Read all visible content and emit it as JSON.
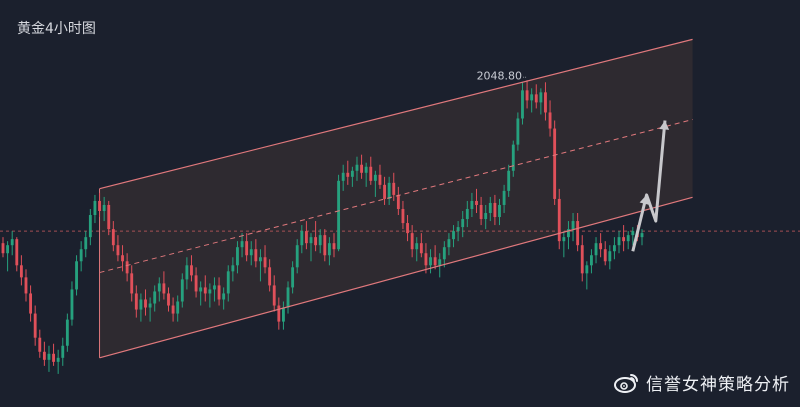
{
  "chart_title": "黄金4小时图",
  "watermark": {
    "text": "信誉女神策略分析",
    "icon": "weibo-icon"
  },
  "colors": {
    "background": "#1b202d",
    "up": "#26a17e",
    "down": "#e0505a",
    "channel": "#e0787c",
    "channel_fill": "#2e2a30",
    "price_line": "#c45a5e",
    "projection": "#c8c8cc"
  },
  "chart_data": {
    "type": "candlestick",
    "title": "黄金4小时图",
    "peak_label": "2048.80",
    "ylim": [
      1895,
      2075
    ],
    "x_count": 140,
    "candles": [
      [
        1969,
        1972,
        1962,
        1964
      ],
      [
        1964,
        1970,
        1955,
        1968
      ],
      [
        1968,
        1975,
        1963,
        1971
      ],
      [
        1971,
        1972,
        1955,
        1958
      ],
      [
        1958,
        1963,
        1948,
        1952
      ],
      [
        1952,
        1956,
        1940,
        1944
      ],
      [
        1944,
        1948,
        1930,
        1934
      ],
      [
        1934,
        1938,
        1918,
        1922
      ],
      [
        1922,
        1926,
        1912,
        1915
      ],
      [
        1915,
        1920,
        1908,
        1911
      ],
      [
        1911,
        1918,
        1905,
        1914
      ],
      [
        1914,
        1919,
        1908,
        1910
      ],
      [
        1910,
        1916,
        1904,
        1912
      ],
      [
        1912,
        1922,
        1908,
        1918
      ],
      [
        1918,
        1934,
        1915,
        1931
      ],
      [
        1931,
        1950,
        1928,
        1946
      ],
      [
        1946,
        1963,
        1943,
        1960
      ],
      [
        1960,
        1970,
        1955,
        1966
      ],
      [
        1966,
        1975,
        1962,
        1972
      ],
      [
        1972,
        1986,
        1968,
        1983
      ],
      [
        1983,
        1993,
        1979,
        1990
      ],
      [
        1990,
        1994,
        1982,
        1985
      ],
      [
        1985,
        1992,
        1980,
        1988
      ],
      [
        1988,
        1990,
        1973,
        1976
      ],
      [
        1976,
        1980,
        1965,
        1968
      ],
      [
        1968,
        1973,
        1960,
        1963
      ],
      [
        1963,
        1968,
        1955,
        1960
      ],
      [
        1960,
        1964,
        1950,
        1954
      ],
      [
        1954,
        1958,
        1940,
        1944
      ],
      [
        1944,
        1948,
        1932,
        1936
      ],
      [
        1936,
        1944,
        1930,
        1941
      ],
      [
        1941,
        1946,
        1933,
        1937
      ],
      [
        1937,
        1942,
        1930,
        1939
      ],
      [
        1939,
        1948,
        1935,
        1945
      ],
      [
        1945,
        1952,
        1940,
        1949
      ],
      [
        1949,
        1955,
        1941,
        1944
      ],
      [
        1944,
        1947,
        1935,
        1938
      ],
      [
        1938,
        1942,
        1930,
        1934
      ],
      [
        1934,
        1943,
        1930,
        1940
      ],
      [
        1940,
        1954,
        1937,
        1951
      ],
      [
        1951,
        1962,
        1946,
        1958
      ],
      [
        1958,
        1963,
        1950,
        1953
      ],
      [
        1953,
        1957,
        1942,
        1945
      ],
      [
        1945,
        1950,
        1938,
        1947
      ],
      [
        1947,
        1953,
        1940,
        1944
      ],
      [
        1944,
        1949,
        1937,
        1946
      ],
      [
        1946,
        1952,
        1940,
        1948
      ],
      [
        1948,
        1952,
        1938,
        1941
      ],
      [
        1941,
        1947,
        1936,
        1944
      ],
      [
        1944,
        1958,
        1940,
        1955
      ],
      [
        1955,
        1962,
        1950,
        1958
      ],
      [
        1958,
        1970,
        1954,
        1967
      ],
      [
        1967,
        1974,
        1962,
        1970
      ],
      [
        1970,
        1974,
        1960,
        1963
      ],
      [
        1963,
        1970,
        1958,
        1966
      ],
      [
        1966,
        1971,
        1957,
        1960
      ],
      [
        1960,
        1966,
        1950,
        1962
      ],
      [
        1962,
        1968,
        1954,
        1957
      ],
      [
        1957,
        1961,
        1945,
        1948
      ],
      [
        1948,
        1953,
        1935,
        1938
      ],
      [
        1938,
        1942,
        1926,
        1930
      ],
      [
        1930,
        1940,
        1926,
        1937
      ],
      [
        1937,
        1950,
        1934,
        1947
      ],
      [
        1947,
        1960,
        1944,
        1957
      ],
      [
        1957,
        1971,
        1954,
        1968
      ],
      [
        1968,
        1978,
        1964,
        1975
      ],
      [
        1975,
        1980,
        1966,
        1969
      ],
      [
        1969,
        1974,
        1960,
        1972
      ],
      [
        1972,
        1980,
        1965,
        1968
      ],
      [
        1968,
        1976,
        1964,
        1973
      ],
      [
        1973,
        1976,
        1960,
        1963
      ],
      [
        1963,
        1972,
        1958,
        1969
      ],
      [
        1969,
        1974,
        1962,
        1966
      ],
      [
        1966,
        2003,
        1965,
        2000
      ],
      [
        2000,
        2008,
        1995,
        2004
      ],
      [
        2004,
        2010,
        1998,
        2002
      ],
      [
        2002,
        2007,
        1997,
        2005
      ],
      [
        2005,
        2012,
        2000,
        2008
      ],
      [
        2008,
        2013,
        2001,
        2004
      ],
      [
        2004,
        2009,
        1997,
        2007
      ],
      [
        2007,
        2012,
        1998,
        2000
      ],
      [
        2000,
        2005,
        1992,
        2003
      ],
      [
        2003,
        2008,
        1996,
        1998
      ],
      [
        1998,
        2002,
        1988,
        1991
      ],
      [
        1991,
        2002,
        1988,
        1999
      ],
      [
        1999,
        2004,
        1990,
        1993
      ],
      [
        1993,
        1997,
        1983,
        1986
      ],
      [
        1986,
        1990,
        1976,
        1979
      ],
      [
        1979,
        1983,
        1970,
        1974
      ],
      [
        1974,
        1978,
        1962,
        1966
      ],
      [
        1966,
        1972,
        1960,
        1969
      ],
      [
        1969,
        1974,
        1962,
        1964
      ],
      [
        1964,
        1969,
        1954,
        1958
      ],
      [
        1958,
        1966,
        1954,
        1962
      ],
      [
        1962,
        1968,
        1956,
        1958
      ],
      [
        1958,
        1964,
        1952,
        1961
      ],
      [
        1961,
        1970,
        1957,
        1967
      ],
      [
        1967,
        1974,
        1963,
        1971
      ],
      [
        1971,
        1978,
        1967,
        1975
      ],
      [
        1975,
        1980,
        1970,
        1977
      ],
      [
        1977,
        1985,
        1972,
        1981
      ],
      [
        1981,
        1990,
        1977,
        1986
      ],
      [
        1986,
        1994,
        1982,
        1990
      ],
      [
        1990,
        1996,
        1984,
        1988
      ],
      [
        1988,
        1992,
        1978,
        1981
      ],
      [
        1981,
        1988,
        1976,
        1984
      ],
      [
        1984,
        1992,
        1980,
        1989
      ],
      [
        1989,
        1993,
        1978,
        1982
      ],
      [
        1982,
        1991,
        1978,
        1988
      ],
      [
        1988,
        1998,
        1984,
        1995
      ],
      [
        1995,
        2008,
        1992,
        2005
      ],
      [
        2005,
        2020,
        2002,
        2018
      ],
      [
        2018,
        2034,
        2015,
        2031
      ],
      [
        2031,
        2049,
        2028,
        2045
      ],
      [
        2045,
        2050,
        2036,
        2040
      ],
      [
        2040,
        2046,
        2034,
        2043
      ],
      [
        2043,
        2048,
        2036,
        2039
      ],
      [
        2039,
        2046,
        2033,
        2044
      ],
      [
        2044,
        2049,
        2030,
        2034
      ],
      [
        2034,
        2040,
        2022,
        2026
      ],
      [
        2026,
        2030,
        1988,
        1991
      ],
      [
        1991,
        1996,
        1966,
        1970
      ],
      [
        1970,
        1975,
        1962,
        1972
      ],
      [
        1972,
        1980,
        1966,
        1976
      ],
      [
        1976,
        1984,
        1970,
        1980
      ],
      [
        1980,
        1984,
        1965,
        1968
      ],
      [
        1968,
        1973,
        1950,
        1954
      ],
      [
        1954,
        1960,
        1946,
        1958
      ],
      [
        1958,
        1966,
        1954,
        1963
      ],
      [
        1963,
        1972,
        1959,
        1969
      ],
      [
        1969,
        1974,
        1962,
        1966
      ],
      [
        1966,
        1970,
        1958,
        1960
      ],
      [
        1960,
        1968,
        1956,
        1965
      ],
      [
        1965,
        1972,
        1961,
        1968
      ],
      [
        1968,
        1975,
        1964,
        1972
      ],
      [
        1972,
        1978,
        1965,
        1970
      ],
      [
        1970,
        1975,
        1966,
        1973
      ],
      [
        1973,
        1977,
        1968,
        1975
      ],
      [
        1975,
        1978,
        1970,
        1972
      ],
      [
        1972,
        1976,
        1968,
        1974
      ]
    ],
    "channel": {
      "upper": [
        [
          0,
          1984
        ],
        [
          139,
          2064
        ]
      ],
      "lower": [
        [
          0,
          1899
        ],
        [
          139,
          1985
        ]
      ],
      "middle": [
        [
          0,
          1942
        ],
        [
          139,
          2024
        ]
      ]
    },
    "horizontal_line": 1975,
    "projection": [
      [
        137,
        1965
      ],
      [
        140,
        1993
      ],
      [
        142,
        1980
      ],
      [
        144,
        2030
      ]
    ]
  }
}
